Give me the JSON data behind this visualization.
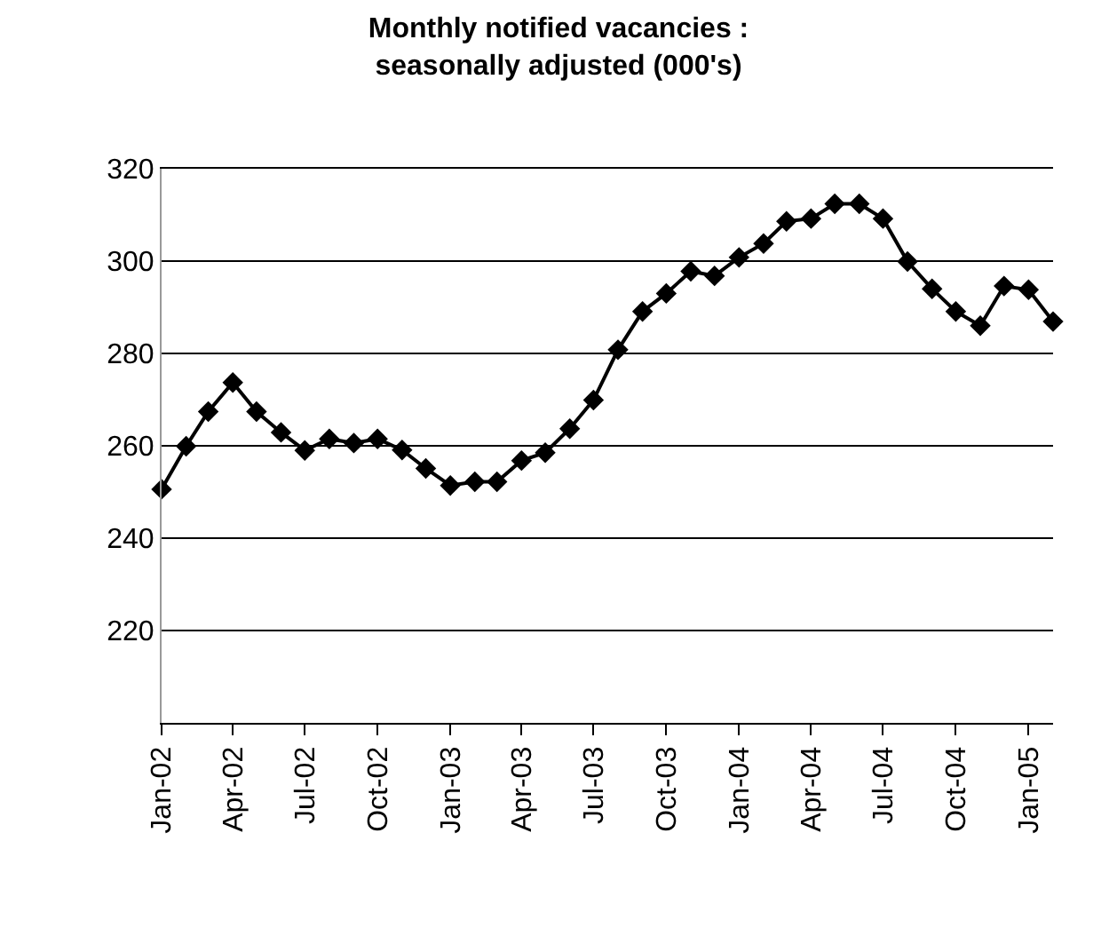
{
  "chart_data": {
    "type": "line",
    "title": "Monthly notified vacancies :\nseasonally adjusted (000's)",
    "x": [
      "2002-01",
      "2002-02",
      "2002-03",
      "2002-04",
      "2002-05",
      "2002-06",
      "2002-07",
      "2002-08",
      "2002-09",
      "2002-10",
      "2002-11",
      "2002-12",
      "2003-01",
      "2003-02",
      "2003-03",
      "2003-04",
      "2003-05",
      "2003-06",
      "2003-07",
      "2003-08",
      "2003-09",
      "2003-10",
      "2003-11",
      "2003-12",
      "2004-01",
      "2004-02",
      "2004-03",
      "2004-04",
      "2004-05",
      "2004-06",
      "2004-07",
      "2004-08",
      "2004-09",
      "2004-10",
      "2004-11",
      "2004-12",
      "2005-01",
      "2005-02"
    ],
    "series": [
      {
        "color": "#000000",
        "values": [
          250.6,
          259.9,
          267.4,
          273.7,
          267.4,
          262.9,
          259.0,
          261.5,
          260.6,
          261.5,
          259.1,
          255.1,
          251.4,
          252.2,
          252.2,
          256.8,
          258.5,
          263.7,
          269.9,
          280.8,
          289.1,
          293.0,
          297.8,
          296.8,
          300.8,
          303.8,
          308.6,
          309.2,
          312.4,
          312.4,
          309.2,
          299.9,
          294.0,
          289.1,
          286.0,
          294.6,
          293.8,
          286.9
        ]
      }
    ],
    "xlim": [
      "2002-01",
      "2005-02"
    ],
    "xticks": [
      {
        "value": "2002-01",
        "label": "Jan-02"
      },
      {
        "value": "2002-04",
        "label": "Apr-02"
      },
      {
        "value": "2002-07",
        "label": "Jul-02"
      },
      {
        "value": "2002-10",
        "label": "Oct-02"
      },
      {
        "value": "2003-01",
        "label": "Jan-03"
      },
      {
        "value": "2003-04",
        "label": "Apr-03"
      },
      {
        "value": "2003-07",
        "label": "Jul-03"
      },
      {
        "value": "2003-10",
        "label": "Oct-03"
      },
      {
        "value": "2004-01",
        "label": "Jan-04"
      },
      {
        "value": "2004-04",
        "label": "Apr-04"
      },
      {
        "value": "2004-07",
        "label": "Jul-04"
      },
      {
        "value": "2004-10",
        "label": "Oct-04"
      },
      {
        "value": "2005-01",
        "label": "Jan-05"
      }
    ],
    "ylim": [
      200,
      320
    ],
    "yticks": [
      {
        "value": 200,
        "label": null
      },
      220,
      240,
      260,
      280,
      300,
      320
    ],
    "grid": "y",
    "marker": "diamond",
    "line_style": "solid"
  }
}
